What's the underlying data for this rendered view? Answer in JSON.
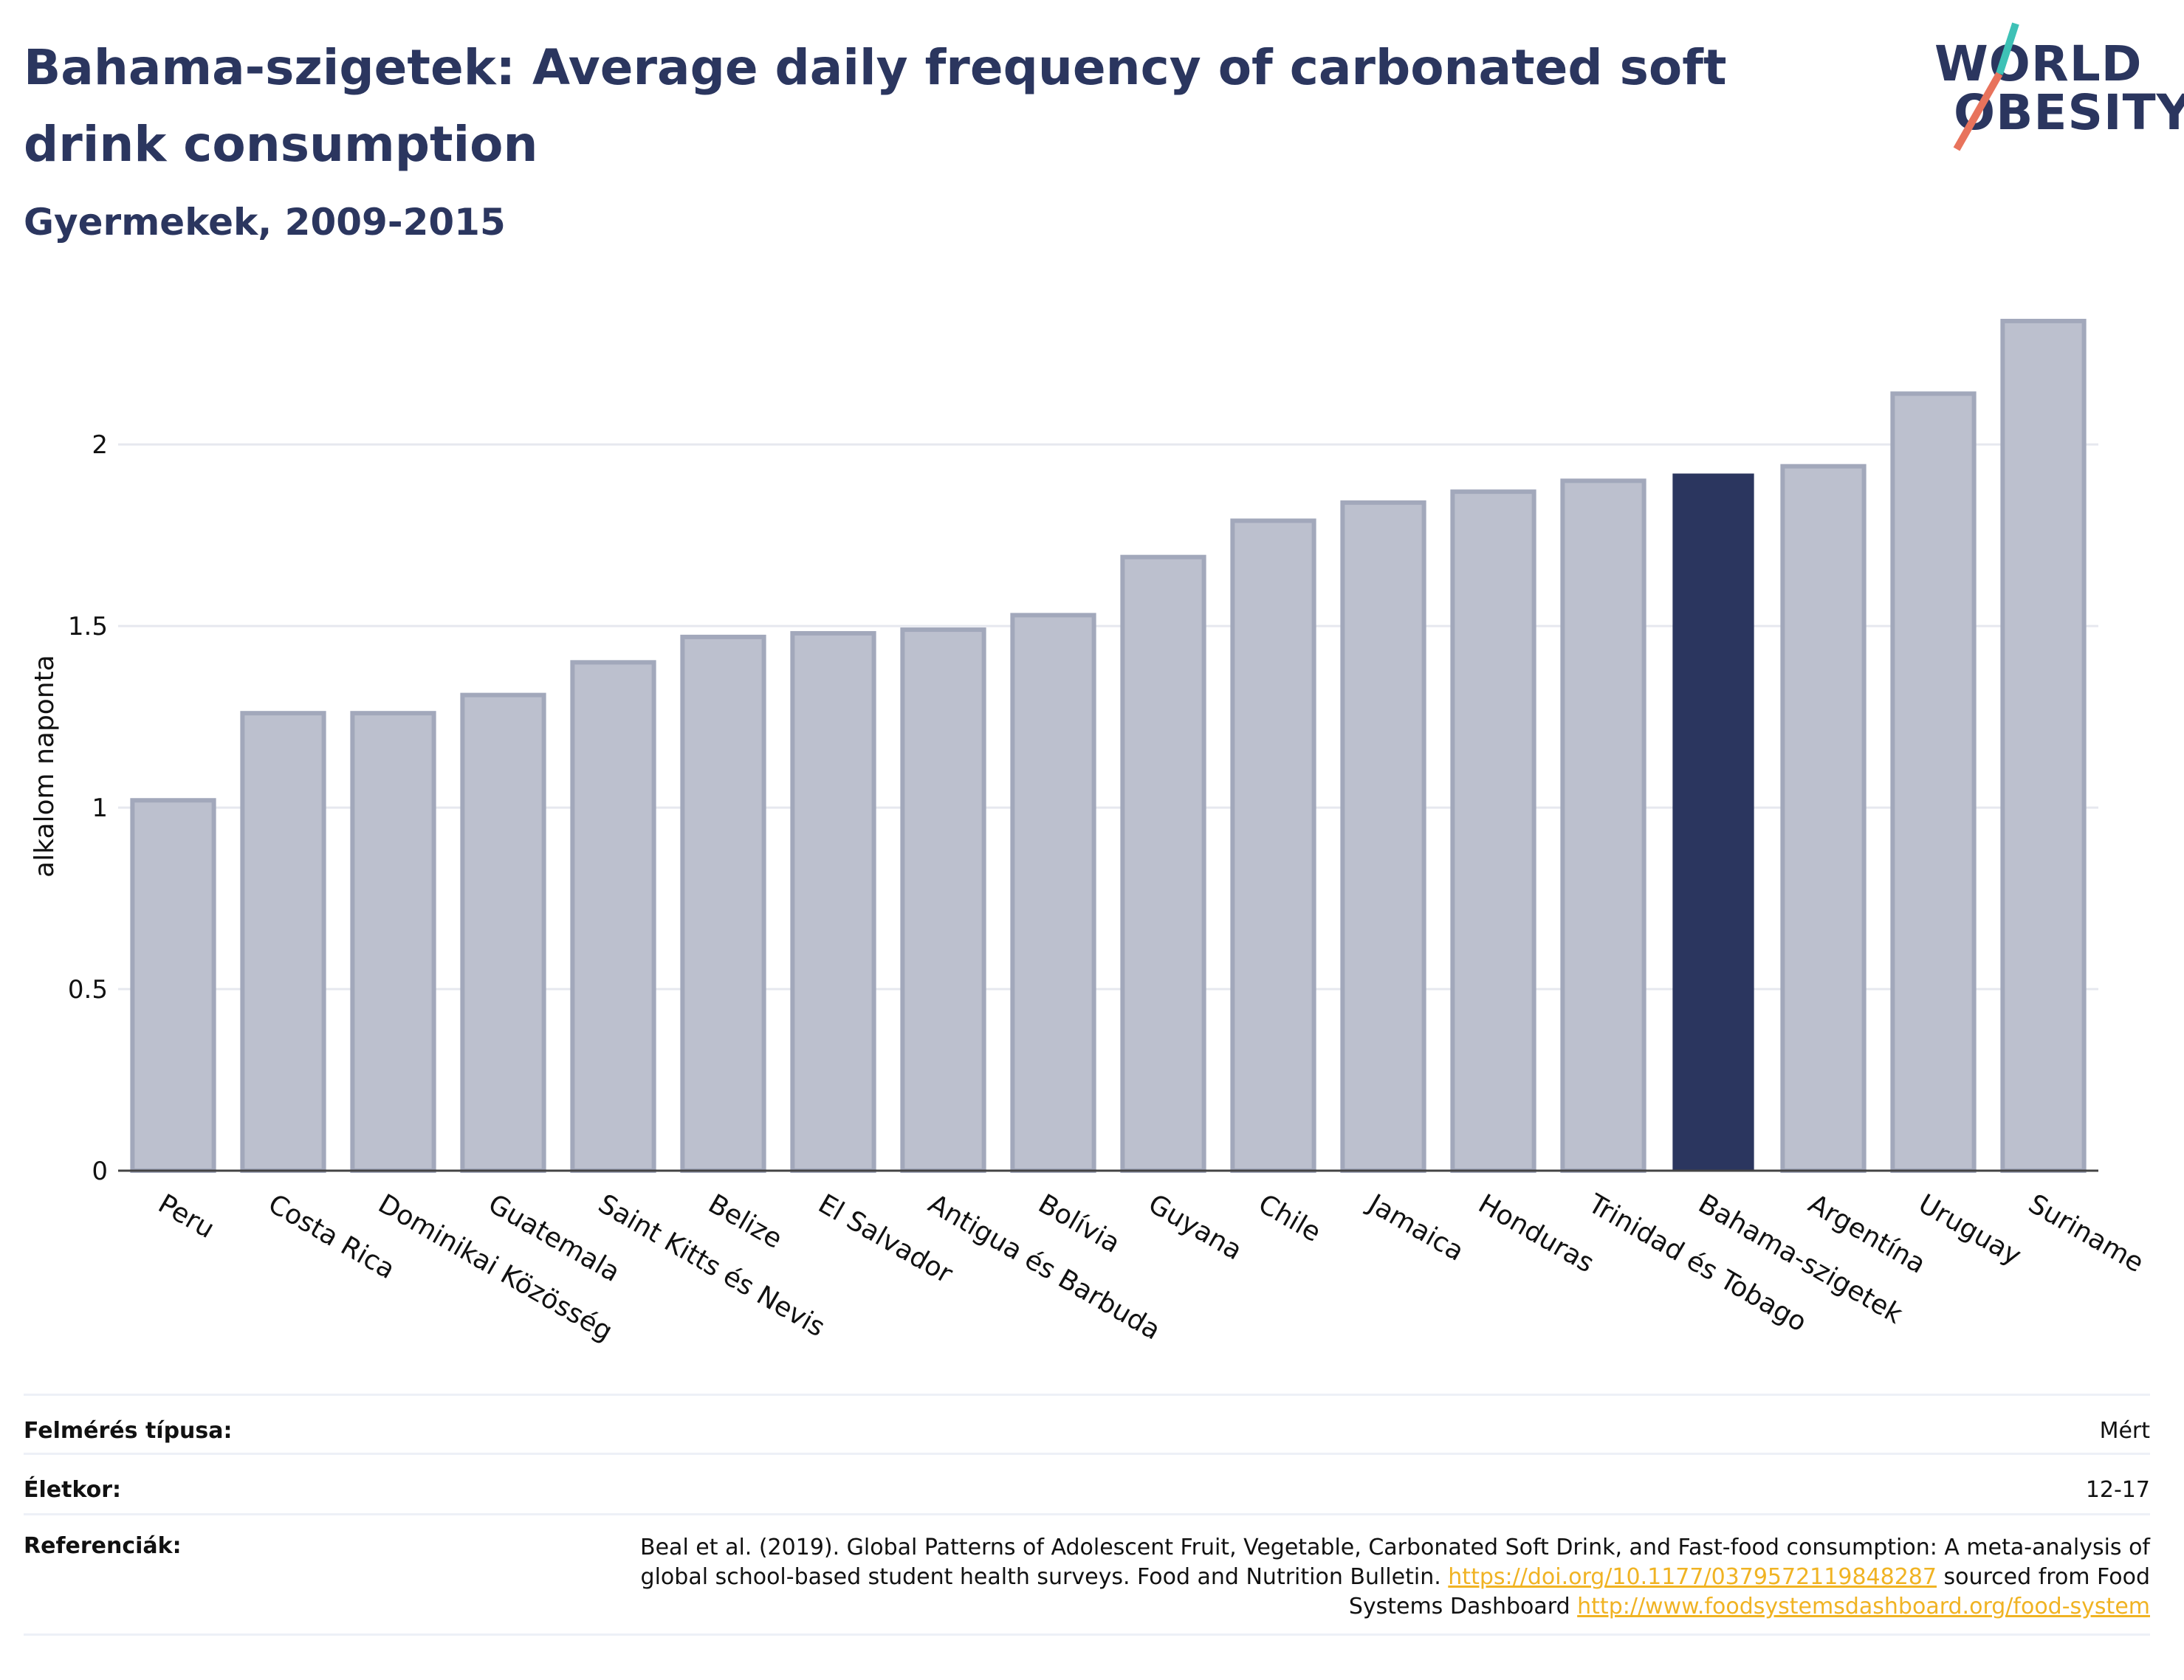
{
  "header": {
    "title": "Bahama-szigetek: Average daily frequency of carbonated soft drink consumption",
    "subtitle": "Gyermekek, 2009-2015"
  },
  "logo": {
    "line1": "WORLD",
    "line2": "OBESITY"
  },
  "colors": {
    "highlight": "#2b365f",
    "other_bars": "#bcc0ce",
    "other_bar_edge": "#a2a8bb",
    "logo_teal": "#3ec1b6",
    "logo_red": "#e8735c",
    "link": "#f0b323"
  },
  "chart_data": {
    "type": "bar",
    "title": "Bahama-szigetek: Average daily frequency of carbonated soft drink consumption",
    "subtitle": "Gyermekek, 2009-2015",
    "xlabel": "",
    "ylabel": "alkalom naponta",
    "ylim": [
      0,
      2.35
    ],
    "yticks": [
      0,
      0.5,
      1,
      1.5,
      2
    ],
    "ytick_labels": [
      "0",
      "0.5",
      "1",
      "1.5",
      "2"
    ],
    "grid": true,
    "highlight": "Bahama-szigetek",
    "categories": [
      "Peru",
      "Costa Rica",
      "Dominikai Közösség",
      "Guatemala",
      "Saint Kitts és Nevis",
      "Belize",
      "El Salvador",
      "Antigua és Barbuda",
      "Bolívia",
      "Guyana",
      "Chile",
      "Jamaica",
      "Honduras",
      "Trinidad és Tobago",
      "Bahama-szigetek",
      "Argentína",
      "Uruguay",
      "Suriname"
    ],
    "values": [
      1.02,
      1.26,
      1.26,
      1.31,
      1.4,
      1.47,
      1.48,
      1.49,
      1.53,
      1.69,
      1.79,
      1.84,
      1.87,
      1.9,
      1.92,
      1.94,
      2.14,
      2.34
    ]
  },
  "info": {
    "survey_label": "Felmérés típusa:",
    "survey_value": "Mért",
    "age_label": "Életkor:",
    "age_value": "12-17",
    "ref_label": "Referenciák:",
    "ref_text1": "Beal et al. (2019). Global Patterns of Adolescent Fruit, Vegetable, Carbonated Soft Drink, and Fast-food consumption: A meta-analysis of global school-based student health surveys. Food and Nutrition Bulletin. ",
    "ref_link1": "https://doi.org/10.1177/0379572119848287",
    "ref_text2": " sourced from Food Systems Dashboard ",
    "ref_link2": "http://www.foodsystemsdashboard.org/food-system"
  }
}
